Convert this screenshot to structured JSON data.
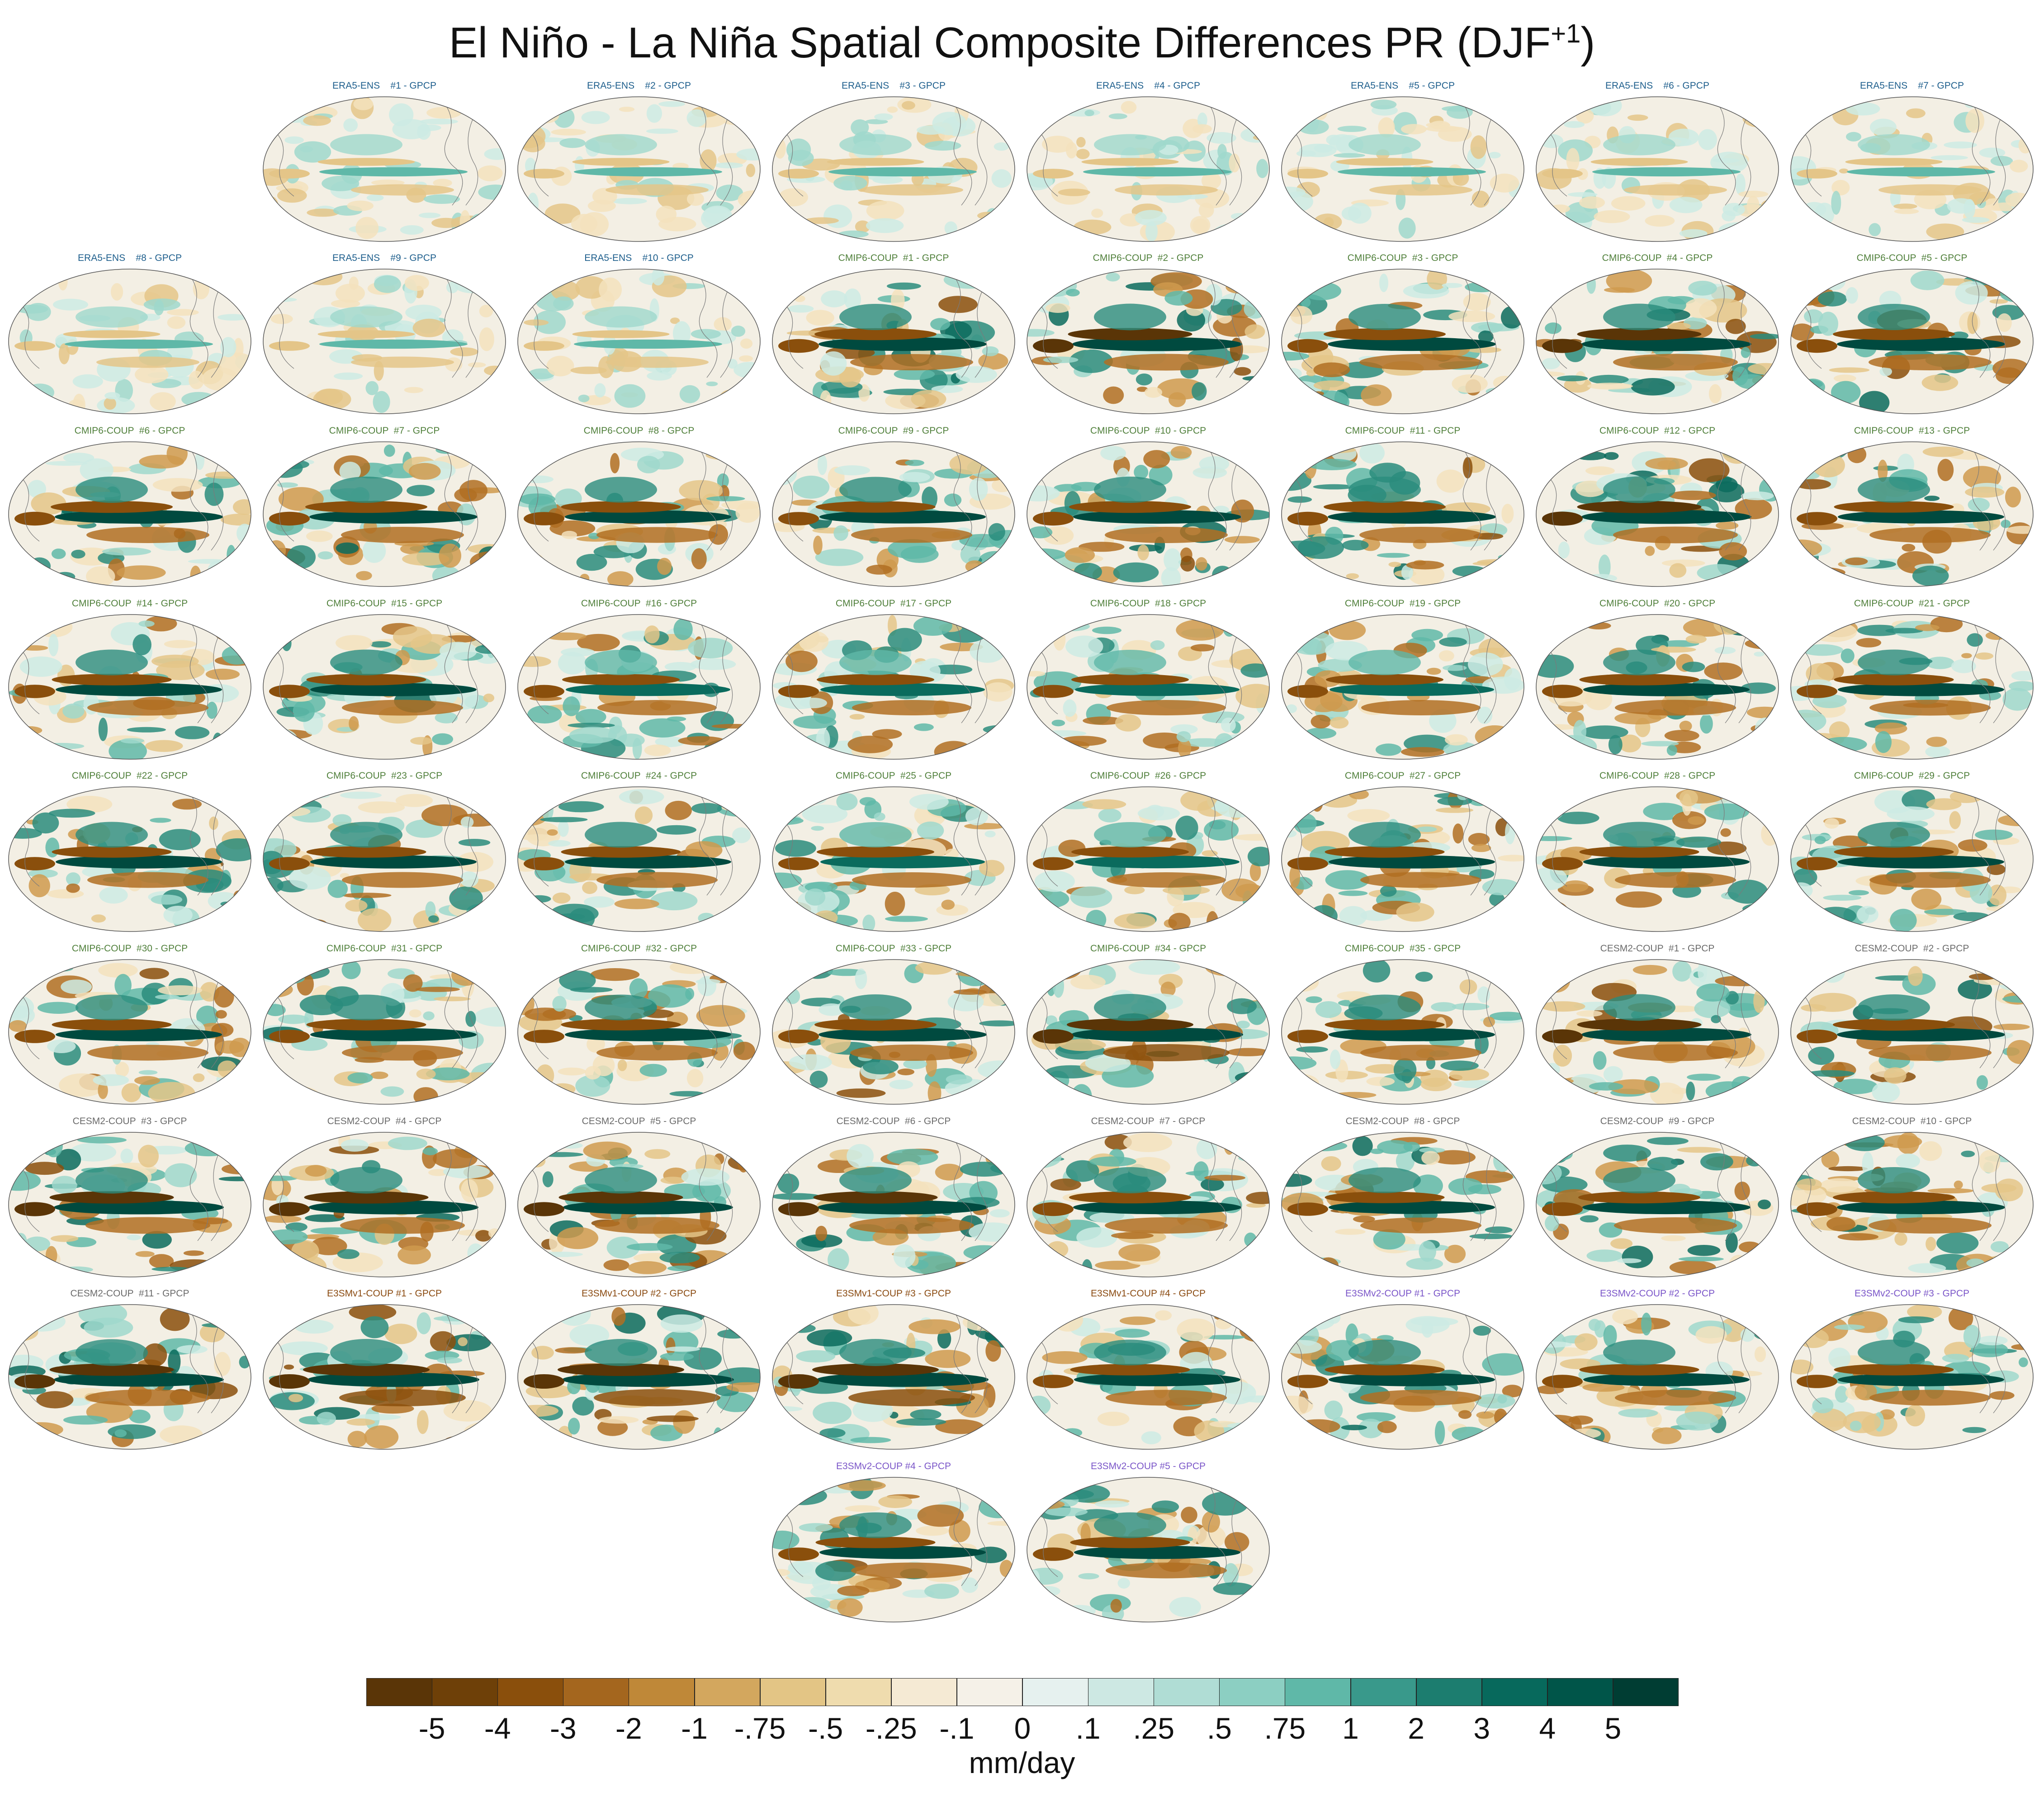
{
  "title": {
    "main": "El Niño - La Niña Spatial Composite Differences PR (DJF",
    "superscript": "+1",
    "close": ")"
  },
  "group_colors": {
    "ERA5-ENS": "#1d5e8c",
    "CMIP6-COUP": "#4f7f3a",
    "CESM2-COUP": "#6a6a6a",
    "E3SMv1-COUP": "#8a4a10",
    "E3SMv2-COUP": "#7a55c8"
  },
  "panels": [
    {
      "group": "ERA5-ENS",
      "label": "ERA5-ENS    #1 - GPCP",
      "intensity": 0.35
    },
    {
      "group": "ERA5-ENS",
      "label": "ERA5-ENS    #2 - GPCP",
      "intensity": 0.35
    },
    {
      "group": "ERA5-ENS",
      "label": "ERA5-ENS    #3 - GPCP",
      "intensity": 0.35
    },
    {
      "group": "ERA5-ENS",
      "label": "ERA5-ENS    #4 - GPCP",
      "intensity": 0.35
    },
    {
      "group": "ERA5-ENS",
      "label": "ERA5-ENS    #5 - GPCP",
      "intensity": 0.35
    },
    {
      "group": "ERA5-ENS",
      "label": "ERA5-ENS    #6 - GPCP",
      "intensity": 0.35
    },
    {
      "group": "ERA5-ENS",
      "label": "ERA5-ENS    #7 - GPCP",
      "intensity": 0.35
    },
    {
      "group": "ERA5-ENS",
      "label": "ERA5-ENS    #8 - GPCP",
      "intensity": 0.35
    },
    {
      "group": "ERA5-ENS",
      "label": "ERA5-ENS    #9 - GPCP",
      "intensity": 0.35
    },
    {
      "group": "ERA5-ENS",
      "label": "ERA5-ENS    #10 - GPCP",
      "intensity": 0.35
    },
    {
      "group": "CMIP6-COUP",
      "label": "CMIP6-COUP  #1 - GPCP",
      "intensity": 0.9
    },
    {
      "group": "CMIP6-COUP",
      "label": "CMIP6-COUP  #2 - GPCP",
      "intensity": 0.95
    },
    {
      "group": "CMIP6-COUP",
      "label": "CMIP6-COUP  #3 - GPCP",
      "intensity": 0.9
    },
    {
      "group": "CMIP6-COUP",
      "label": "CMIP6-COUP  #4 - GPCP",
      "intensity": 0.95
    },
    {
      "group": "CMIP6-COUP",
      "label": "CMIP6-COUP  #5 - GPCP",
      "intensity": 0.9
    },
    {
      "group": "CMIP6-COUP",
      "label": "CMIP6-COUP  #6 - GPCP",
      "intensity": 0.9
    },
    {
      "group": "CMIP6-COUP",
      "label": "CMIP6-COUP  #7 - GPCP",
      "intensity": 0.9
    },
    {
      "group": "CMIP6-COUP",
      "label": "CMIP6-COUP  #8 - GPCP",
      "intensity": 0.85
    },
    {
      "group": "CMIP6-COUP",
      "label": "CMIP6-COUP  #9 - GPCP",
      "intensity": 0.85
    },
    {
      "group": "CMIP6-COUP",
      "label": "CMIP6-COUP  #10 - GPCP",
      "intensity": 0.9
    },
    {
      "group": "CMIP6-COUP",
      "label": "CMIP6-COUP  #11 - GPCP",
      "intensity": 0.9
    },
    {
      "group": "CMIP6-COUP",
      "label": "CMIP6-COUP  #12 - GPCP",
      "intensity": 0.95
    },
    {
      "group": "CMIP6-COUP",
      "label": "CMIP6-COUP  #13 - GPCP",
      "intensity": 0.85
    },
    {
      "group": "CMIP6-COUP",
      "label": "CMIP6-COUP  #14 - GPCP",
      "intensity": 0.85
    },
    {
      "group": "CMIP6-COUP",
      "label": "CMIP6-COUP  #15 - GPCP",
      "intensity": 0.85
    },
    {
      "group": "CMIP6-COUP",
      "label": "CMIP6-COUP  #16 - GPCP",
      "intensity": 0.8
    },
    {
      "group": "CMIP6-COUP",
      "label": "CMIP6-COUP  #17 - GPCP",
      "intensity": 0.8
    },
    {
      "group": "CMIP6-COUP",
      "label": "CMIP6-COUP  #18 - GPCP",
      "intensity": 0.8
    },
    {
      "group": "CMIP6-COUP",
      "label": "CMIP6-COUP  #19 - GPCP",
      "intensity": 0.8
    },
    {
      "group": "CMIP6-COUP",
      "label": "CMIP6-COUP  #20 - GPCP",
      "intensity": 0.85
    },
    {
      "group": "CMIP6-COUP",
      "label": "CMIP6-COUP  #21 - GPCP",
      "intensity": 0.85
    },
    {
      "group": "CMIP6-COUP",
      "label": "CMIP6-COUP  #22 - GPCP",
      "intensity": 0.85
    },
    {
      "group": "CMIP6-COUP",
      "label": "CMIP6-COUP  #23 - GPCP",
      "intensity": 0.85
    },
    {
      "group": "CMIP6-COUP",
      "label": "CMIP6-COUP  #24 - GPCP",
      "intensity": 0.85
    },
    {
      "group": "CMIP6-COUP",
      "label": "CMIP6-COUP  #25 - GPCP",
      "intensity": 0.8
    },
    {
      "group": "CMIP6-COUP",
      "label": "CMIP6-COUP  #26 - GPCP",
      "intensity": 0.8
    },
    {
      "group": "CMIP6-COUP",
      "label": "CMIP6-COUP  #27 - GPCP",
      "intensity": 0.85
    },
    {
      "group": "CMIP6-COUP",
      "label": "CMIP6-COUP  #28 - GPCP",
      "intensity": 0.85
    },
    {
      "group": "CMIP6-COUP",
      "label": "CMIP6-COUP  #29 - GPCP",
      "intensity": 0.85
    },
    {
      "group": "CMIP6-COUP",
      "label": "CMIP6-COUP  #30 - GPCP",
      "intensity": 0.85
    },
    {
      "group": "CMIP6-COUP",
      "label": "CMIP6-COUP  #31 - GPCP",
      "intensity": 0.85
    },
    {
      "group": "CMIP6-COUP",
      "label": "CMIP6-COUP  #32 - GPCP",
      "intensity": 0.85
    },
    {
      "group": "CMIP6-COUP",
      "label": "CMIP6-COUP  #33 - GPCP",
      "intensity": 0.9
    },
    {
      "group": "CMIP6-COUP",
      "label": "CMIP6-COUP  #34 - GPCP",
      "intensity": 1.0
    },
    {
      "group": "CMIP6-COUP",
      "label": "CMIP6-COUP  #35 - GPCP",
      "intensity": 0.85
    },
    {
      "group": "CESM2-COUP",
      "label": "CESM2-COUP  #1 - GPCP",
      "intensity": 0.95
    },
    {
      "group": "CESM2-COUP",
      "label": "CESM2-COUP  #2 - GPCP",
      "intensity": 0.9
    },
    {
      "group": "CESM2-COUP",
      "label": "CESM2-COUP  #3 - GPCP",
      "intensity": 0.95
    },
    {
      "group": "CESM2-COUP",
      "label": "CESM2-COUP  #4 - GPCP",
      "intensity": 0.95
    },
    {
      "group": "CESM2-COUP",
      "label": "CESM2-COUP  #5 - GPCP",
      "intensity": 0.95
    },
    {
      "group": "CESM2-COUP",
      "label": "CESM2-COUP  #6 - GPCP",
      "intensity": 0.95
    },
    {
      "group": "CESM2-COUP",
      "label": "CESM2-COUP  #7 - GPCP",
      "intensity": 0.9
    },
    {
      "group": "CESM2-COUP",
      "label": "CESM2-COUP  #8 - GPCP",
      "intensity": 0.85
    },
    {
      "group": "CESM2-COUP",
      "label": "CESM2-COUP  #9 - GPCP",
      "intensity": 0.9
    },
    {
      "group": "CESM2-COUP",
      "label": "CESM2-COUP  #10 - GPCP",
      "intensity": 0.9
    },
    {
      "group": "CESM2-COUP",
      "label": "CESM2-COUP  #11 - GPCP",
      "intensity": 0.95
    },
    {
      "group": "E3SMv1-COUP",
      "label": "E3SMv1-COUP #1 - GPCP",
      "intensity": 1.0
    },
    {
      "group": "E3SMv1-COUP",
      "label": "E3SMv1-COUP #2 - GPCP",
      "intensity": 1.0
    },
    {
      "group": "E3SMv1-COUP",
      "label": "E3SMv1-COUP #3 - GPCP",
      "intensity": 1.0
    },
    {
      "group": "E3SMv1-COUP",
      "label": "E3SMv1-COUP #4 - GPCP",
      "intensity": 0.85
    },
    {
      "group": "E3SMv2-COUP",
      "label": "E3SMv2-COUP #1 - GPCP",
      "intensity": 0.85
    },
    {
      "group": "E3SMv2-COUP",
      "label": "E3SMv2-COUP #2 - GPCP",
      "intensity": 0.85
    },
    {
      "group": "E3SMv2-COUP",
      "label": "E3SMv2-COUP #3 - GPCP",
      "intensity": 0.85
    },
    {
      "group": "E3SMv2-COUP",
      "label": "E3SMv2-COUP #4 - GPCP",
      "intensity": 0.85
    },
    {
      "group": "E3SMv2-COUP",
      "label": "E3SMv2-COUP #5 - GPCP",
      "intensity": 0.85
    }
  ],
  "colorbar": {
    "colors": [
      "#5a3507",
      "#6e4008",
      "#8a4f0c",
      "#a4661e",
      "#bf8838",
      "#d3a75e",
      "#e3c585",
      "#efdcae",
      "#f5ead4",
      "#f5f1e8",
      "#e6f1ef",
      "#cde8e3",
      "#b0ddd5",
      "#8ccfc2",
      "#5fb8a8",
      "#39998b",
      "#1c7d6f",
      "#07695c",
      "#005549",
      "#003d33"
    ],
    "ticks": [
      "-5",
      "-4",
      "-3",
      "-2",
      "-1",
      "-.75",
      "-.5",
      "-.25",
      "-.1",
      "0",
      ".1",
      ".25",
      ".5",
      ".75",
      "1",
      "2",
      "3",
      "4",
      "5"
    ],
    "units": "mm/day"
  }
}
